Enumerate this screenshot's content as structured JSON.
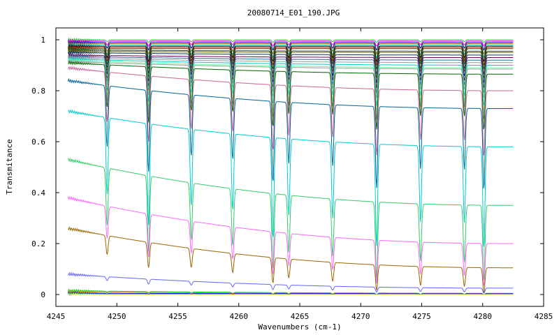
{
  "chart_data": {
    "type": "line",
    "title": "20080714_E01_190.JPG",
    "xlabel": "Wavenumbers (cm-1)",
    "ylabel": "Transmitance",
    "xlim": [
      4245,
      4285
    ],
    "ylim": [
      0,
      1
    ],
    "x_ticks": [
      4245,
      4250,
      4255,
      4260,
      4265,
      4270,
      4275,
      4280,
      4285
    ],
    "y_ticks": [
      0,
      0.2,
      0.4,
      0.6,
      0.8,
      1
    ],
    "y_tick_labels": [
      "0",
      "0.2",
      "0.4",
      "0.6",
      "0.8",
      "1"
    ],
    "x_range_of_data": [
      4246,
      4282.5
    ],
    "grid": false,
    "legend": "none",
    "absorption_lines": [
      4249.2,
      4252.6,
      4256.1,
      4259.5,
      4262.8,
      4264.1,
      4267.7,
      4271.3,
      4274.9,
      4278.5,
      4280.1
    ],
    "series": [
      {
        "color": "#33cc33",
        "values": {
          "baseline_start": 1.0,
          "baseline_end": 1.0,
          "depth": 0.01
        }
      },
      {
        "color": "#ff00ff",
        "values": {
          "baseline_start": 0.995,
          "baseline_end": 0.995,
          "depth": 0.02
        }
      },
      {
        "color": "#0000cc",
        "values": {
          "baseline_start": 0.99,
          "baseline_end": 0.99,
          "depth": 0.03
        }
      },
      {
        "color": "#996600",
        "values": {
          "baseline_start": 0.985,
          "baseline_end": 0.985,
          "depth": 0.04
        }
      },
      {
        "color": "#00cccc",
        "values": {
          "baseline_start": 0.98,
          "baseline_end": 0.98,
          "depth": 0.05
        }
      },
      {
        "color": "#000000",
        "values": {
          "baseline_start": 0.975,
          "baseline_end": 0.975,
          "depth": 0.06
        }
      },
      {
        "color": "#cc0000",
        "values": {
          "baseline_start": 0.97,
          "baseline_end": 0.97,
          "depth": 0.07
        }
      },
      {
        "color": "#006600",
        "values": {
          "baseline_start": 0.965,
          "baseline_end": 0.965,
          "depth": 0.08
        }
      },
      {
        "color": "#333333",
        "values": {
          "baseline_start": 0.96,
          "baseline_end": 0.955,
          "depth": 0.09
        }
      },
      {
        "color": "#666600",
        "values": {
          "baseline_start": 0.955,
          "baseline_end": 0.95,
          "depth": 0.1
        }
      },
      {
        "color": "#003366",
        "values": {
          "baseline_start": 0.95,
          "baseline_end": 0.94,
          "depth": 0.11
        }
      },
      {
        "color": "#660066",
        "values": {
          "baseline_start": 0.94,
          "baseline_end": 0.93,
          "depth": 0.12
        }
      },
      {
        "color": "#336699",
        "values": {
          "baseline_start": 0.935,
          "baseline_end": 0.92,
          "depth": 0.13
        }
      },
      {
        "color": "#999999",
        "values": {
          "baseline_start": 0.93,
          "baseline_end": 0.91,
          "depth": 0.14
        }
      },
      {
        "color": "#00cccc",
        "values": {
          "baseline_start": 0.925,
          "baseline_end": 0.9,
          "depth": 0.16
        }
      },
      {
        "color": "#66ff99",
        "values": {
          "baseline_start": 0.92,
          "baseline_end": 0.89,
          "depth": 0.18
        }
      },
      {
        "color": "#999999",
        "values": {
          "baseline_start": 0.915,
          "baseline_end": 0.885,
          "depth": 0.2
        }
      },
      {
        "color": "#006600",
        "values": {
          "baseline_start": 0.91,
          "baseline_end": 0.865,
          "depth": 0.22
        }
      },
      {
        "color": "#cc6699",
        "values": {
          "baseline_start": 0.89,
          "baseline_end": 0.8,
          "depth": 0.26
        }
      },
      {
        "color": "#006699",
        "values": {
          "baseline_start": 0.84,
          "baseline_end": 0.73,
          "depth": 0.32
        }
      },
      {
        "color": "#00cccc",
        "values": {
          "baseline_start": 0.72,
          "baseline_end": 0.58,
          "depth": 0.4
        }
      },
      {
        "color": "#33cc66",
        "values": {
          "baseline_start": 0.53,
          "baseline_end": 0.35,
          "depth": 0.3
        }
      },
      {
        "color": "#ff66ff",
        "values": {
          "baseline_start": 0.38,
          "baseline_end": 0.2,
          "depth": 0.17
        }
      },
      {
        "color": "#996600",
        "values": {
          "baseline_start": 0.26,
          "baseline_end": 0.105,
          "depth": 0.1
        }
      },
      {
        "color": "#6666ff",
        "values": {
          "baseline_start": 0.08,
          "baseline_end": 0.025,
          "depth": 0.02
        }
      },
      {
        "color": "#00cc00",
        "values": {
          "baseline_start": 0.015,
          "baseline_end": 0.005,
          "depth": 0.005
        }
      },
      {
        "color": "#cc9900",
        "values": {
          "baseline_start": 0.01,
          "baseline_end": 0.004,
          "depth": 0.004
        }
      },
      {
        "color": "#0000ff",
        "values": {
          "baseline_start": 0.005,
          "baseline_end": 0.003,
          "depth": 0.003
        }
      },
      {
        "color": "#009999",
        "values": {
          "baseline_start": 0.002,
          "baseline_end": 0.001,
          "depth": 0.002
        }
      },
      {
        "color": "#ffff00",
        "values": {
          "baseline_start": 0.0,
          "baseline_end": 0.0,
          "depth": 0.0
        }
      }
    ]
  }
}
